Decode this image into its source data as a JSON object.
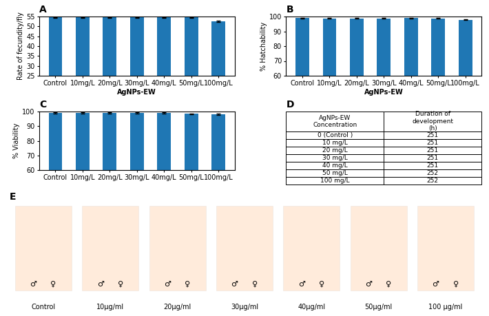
{
  "chart_data": [
    {
      "type": "bar",
      "title": "A",
      "xlabel": "AgNPs-EW",
      "ylabel": "Rate of fecundity/fly",
      "categories": [
        "Control",
        "10mg/L",
        "20mg/L",
        "30mg/L",
        "40mg/L",
        "50mg/L",
        "100mg/L"
      ],
      "values": [
        54.5,
        54.5,
        54.5,
        54.5,
        54.5,
        54.5,
        52.5
      ],
      "errors": [
        0.3,
        0.3,
        0.3,
        0.3,
        0.3,
        0.3,
        0.4
      ],
      "ylim": [
        25,
        55
      ],
      "yticks": [
        25,
        30,
        35,
        40,
        45,
        50,
        55
      ]
    },
    {
      "type": "bar",
      "title": "B",
      "xlabel": "AgNPs-EW",
      "ylabel": "% Hatchability",
      "categories": [
        "Control",
        "10mg/L",
        "20mg/L",
        "30mg/L",
        "40mg/L",
        "50mg/L",
        "100mg/L"
      ],
      "values": [
        99.0,
        98.8,
        98.8,
        98.8,
        99.0,
        98.8,
        97.8
      ],
      "errors": [
        0.2,
        0.2,
        0.2,
        0.2,
        0.2,
        0.2,
        0.3
      ],
      "ylim": [
        60,
        100
      ],
      "yticks": [
        60,
        70,
        80,
        90,
        100
      ]
    },
    {
      "type": "bar",
      "title": "C",
      "ylabel": "% Viability",
      "categories": [
        "Control",
        "10mg/L",
        "20mg/L",
        "30mg/L",
        "40mg/L",
        "50mg/L",
        "100mg/L"
      ],
      "values": [
        99.0,
        99.0,
        99.0,
        99.0,
        99.0,
        98.5,
        98.0
      ],
      "errors": [
        0.3,
        0.3,
        0.3,
        0.3,
        0.3,
        0.3,
        0.4
      ],
      "ylim": [
        60,
        100
      ],
      "yticks": [
        60,
        70,
        80,
        90,
        100
      ]
    },
    {
      "type": "table",
      "title": "D",
      "columns": [
        "AgNPs-EW\nConcentration",
        "Duration of\ndevelopment\n(h)"
      ],
      "rows": [
        [
          "0 (Control )",
          "251"
        ],
        [
          "10 mg/L",
          "251"
        ],
        [
          "20 mg/L",
          "251"
        ],
        [
          "30 mg/L",
          "251"
        ],
        [
          "40 mg/L",
          "251"
        ],
        [
          "50 mg/L",
          "252"
        ],
        [
          "100 mg/L",
          "252"
        ]
      ]
    },
    {
      "type": "image",
      "title": "E",
      "categories": [
        "Control",
        "10μg/ml",
        "20μg/ml",
        "30μg/ml",
        "40μg/ml",
        "50μg/ml",
        "100 μg/ml"
      ],
      "annotations": [
        "♂",
        "♀"
      ]
    }
  ]
}
